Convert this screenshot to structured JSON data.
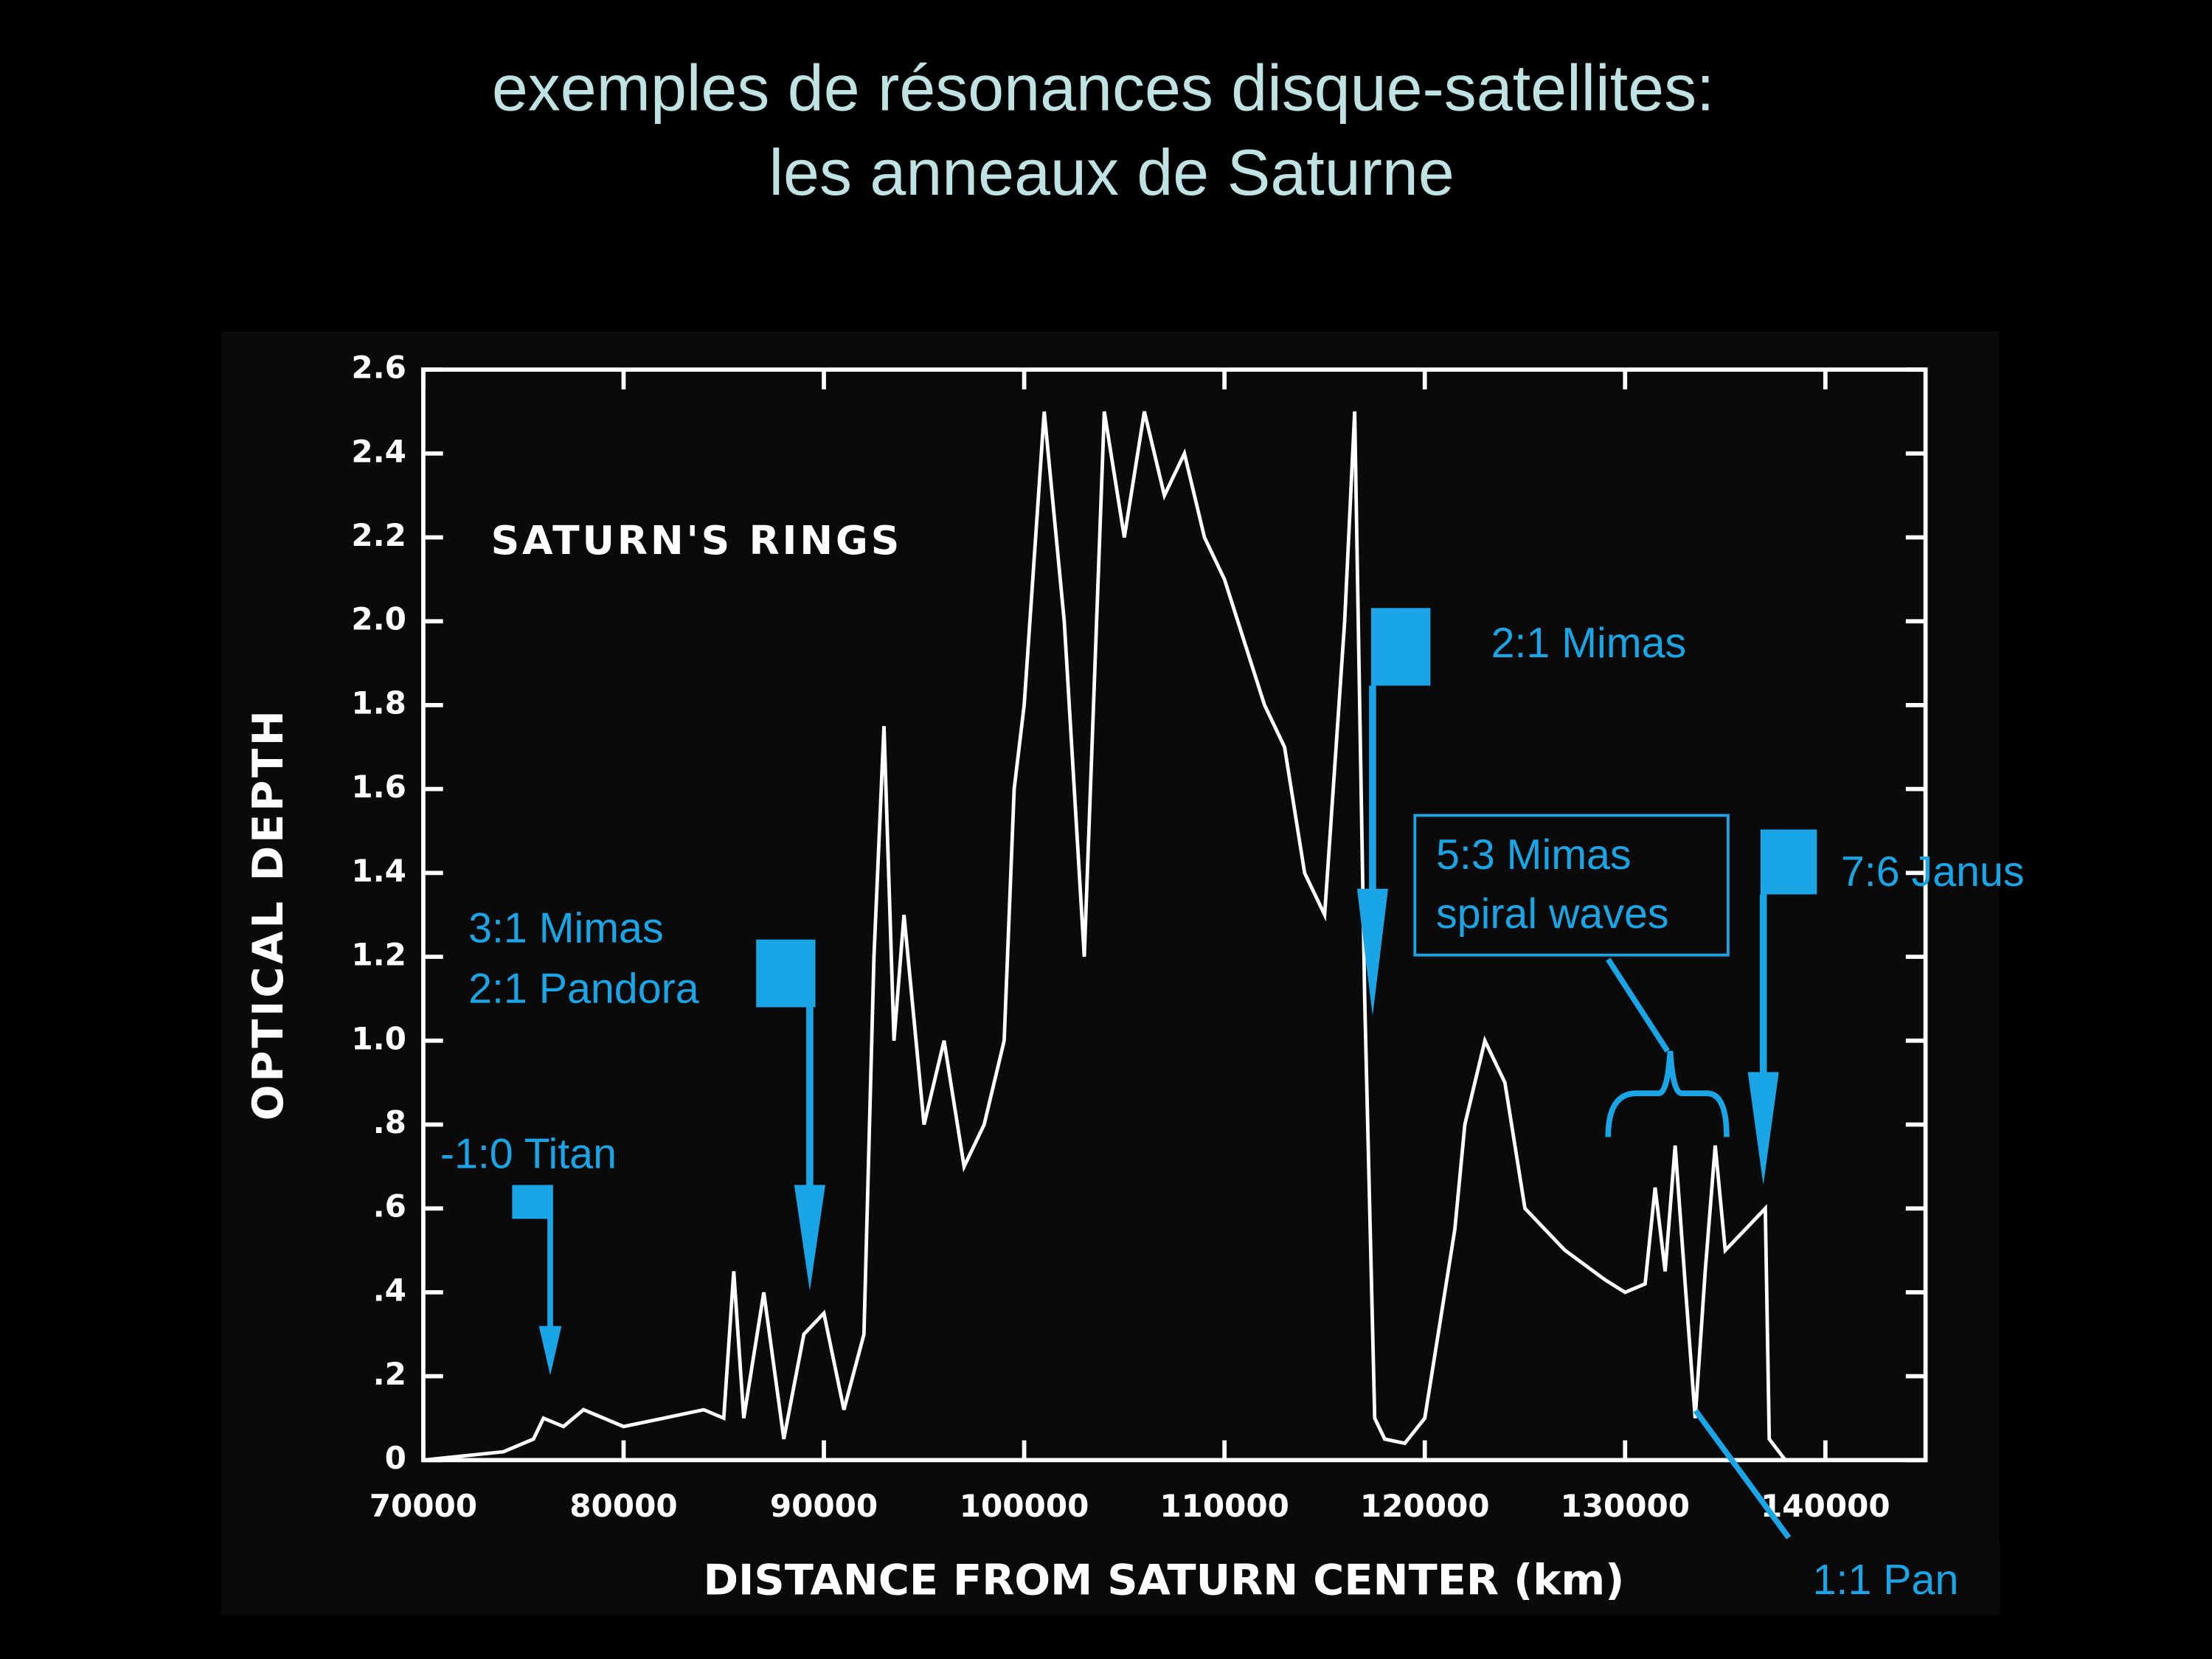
{
  "title": "exemples de résonances disque-satellites:",
  "subtitle": "les anneaux de Saturne",
  "chart_data": {
    "type": "line",
    "title": "SATURN'S RINGS",
    "xlabel": "DISTANCE FROM SATURN CENTER (km)",
    "ylabel": "OPTICAL DEPTH",
    "xlim": [
      70000,
      145000
    ],
    "ylim": [
      0,
      2.6
    ],
    "xticks": [
      70000,
      80000,
      90000,
      100000,
      110000,
      120000,
      130000,
      140000
    ],
    "yticks": [
      0,
      {
        "value": 0.2,
        "label": ".2"
      },
      {
        "value": 0.4,
        "label": ".4"
      },
      {
        "value": 0.6,
        "label": ".6"
      },
      {
        "value": 0.8,
        "label": ".8"
      },
      {
        "value": 1,
        "label": "1.0"
      },
      1.2,
      1.4,
      1.6,
      1.8,
      {
        "value": 2,
        "label": "2.0"
      },
      2.2,
      2.4,
      2.6
    ],
    "x": [
      70000,
      74000,
      75500,
      76000,
      77000,
      78000,
      80000,
      82000,
      84000,
      85000,
      85500,
      86000,
      87000,
      88000,
      89000,
      90000,
      91000,
      92000,
      92500,
      93000,
      93500,
      94000,
      95000,
      96000,
      97000,
      98000,
      99000,
      99500,
      100000,
      101000,
      102000,
      103000,
      104000,
      105000,
      106000,
      107000,
      108000,
      109000,
      110000,
      111000,
      112000,
      113000,
      114000,
      115000,
      116000,
      116500,
      117000,
      117500,
      118000,
      119000,
      120000,
      121000,
      121500,
      122000,
      123000,
      124000,
      125000,
      127000,
      129000,
      130000,
      131000,
      131500,
      132000,
      132500,
      133000,
      133500,
      134000,
      134500,
      135000,
      136000,
      137000,
      137200,
      138000
    ],
    "series": [
      {
        "name": "optical depth",
        "color": "#ffffff",
        "values": [
          0,
          0.02,
          0.05,
          0.1,
          0.08,
          0.12,
          0.08,
          0.1,
          0.12,
          0.1,
          0.45,
          0.1,
          0.4,
          0.05,
          0.3,
          0.35,
          0.12,
          0.3,
          1.2,
          1.75,
          1.0,
          1.3,
          0.8,
          1.0,
          0.7,
          0.8,
          1.0,
          1.6,
          1.8,
          2.5,
          2.0,
          1.2,
          2.5,
          2.2,
          2.5,
          2.3,
          2.4,
          2.2,
          2.1,
          1.95,
          1.8,
          1.7,
          1.4,
          1.3,
          2.0,
          2.5,
          1.1,
          0.1,
          0.05,
          0.04,
          0.1,
          0.4,
          0.55,
          0.8,
          1.0,
          0.9,
          0.6,
          0.5,
          0.43,
          0.4,
          0.42,
          0.65,
          0.45,
          0.75,
          0.42,
          0.1,
          0.45,
          0.75,
          0.5,
          0.55,
          0.6,
          0.05,
          0
        ]
      }
    ],
    "annotations": [
      "-1:0 Titan",
      "3:1 Mimas",
      "2:1 Pandora",
      "2:1 Mimas",
      "5:3 Mimas",
      "spiral waves",
      "7:6 Janus",
      "1:1 Pan"
    ]
  }
}
